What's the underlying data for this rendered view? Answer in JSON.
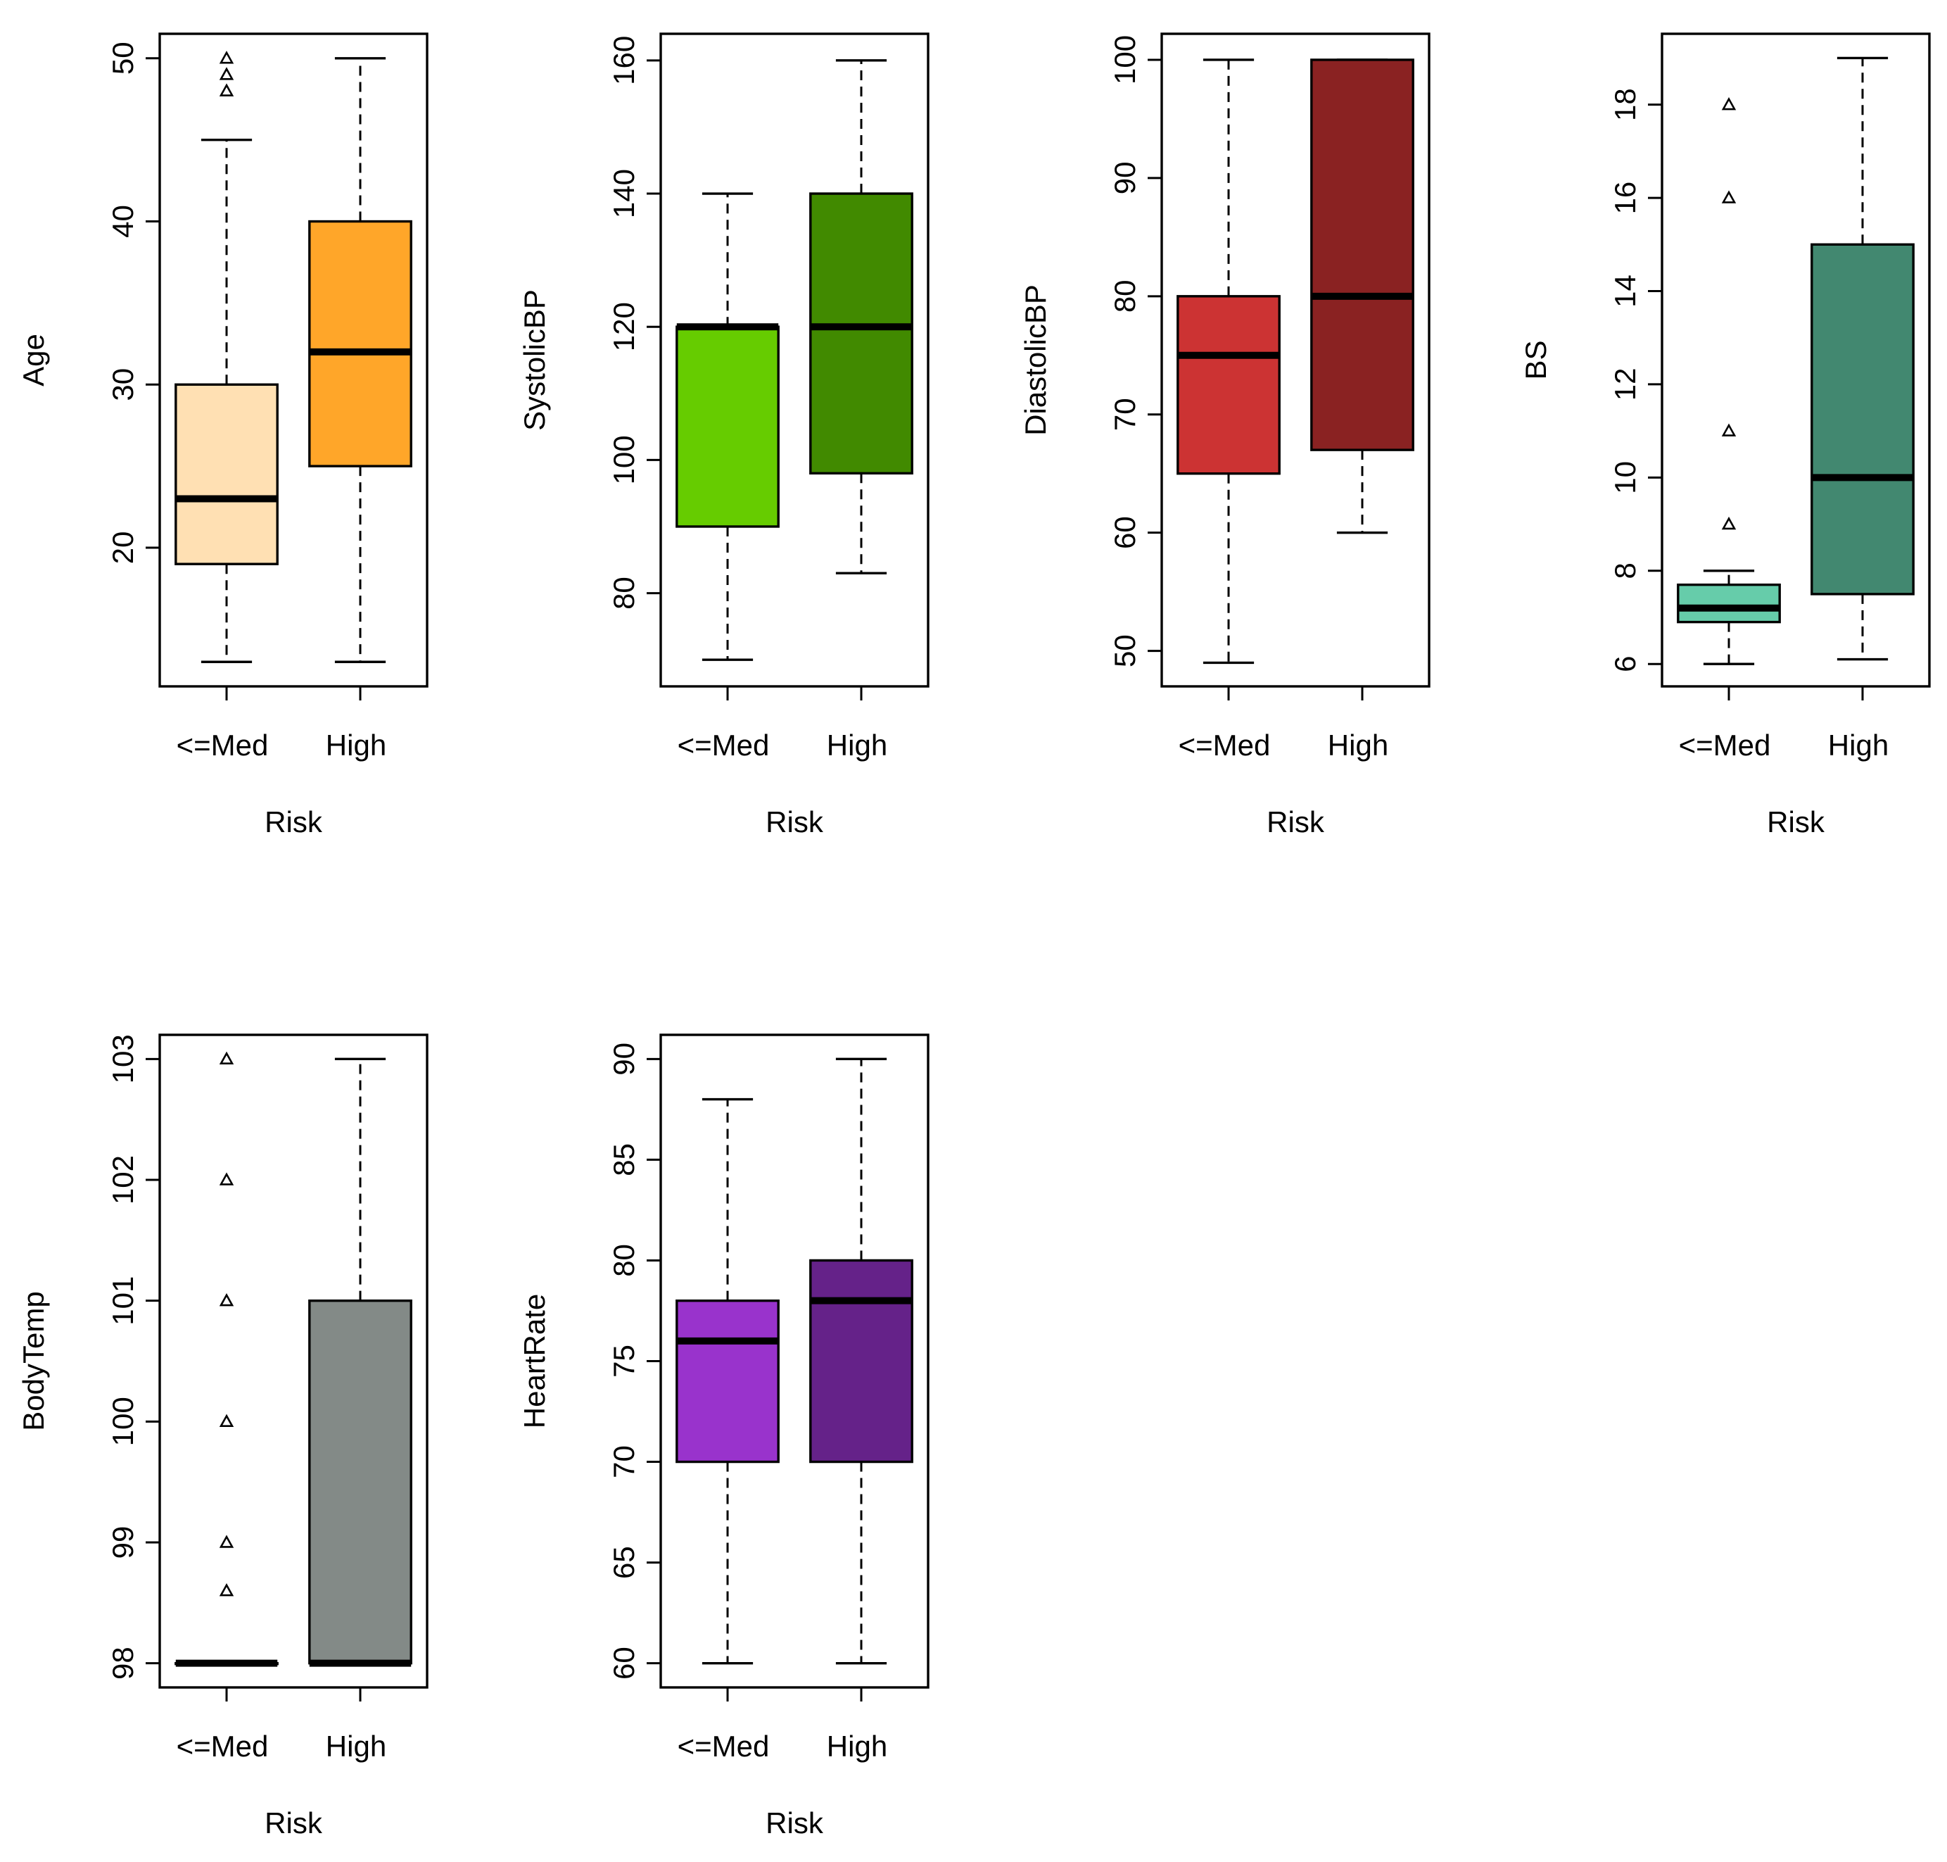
{
  "chart_data": [
    {
      "type": "boxplot",
      "ylabel": "Age",
      "xlabel": "Risk",
      "categories": [
        "<=Med",
        "High"
      ],
      "yticks": [
        20,
        30,
        40,
        50
      ],
      "ylim": [
        11.5,
        51.5
      ],
      "boxes": [
        {
          "category": "<=Med",
          "min": 13,
          "q1": 19,
          "median": 23,
          "q3": 30,
          "max": 45,
          "outliers": [
            48,
            49,
            50
          ],
          "fill": "#FFE0B3"
        },
        {
          "category": "High",
          "min": 13,
          "q1": 25,
          "median": 32,
          "q3": 40,
          "max": 50,
          "outliers": [],
          "fill": "#FFA629"
        }
      ]
    },
    {
      "type": "boxplot",
      "ylabel": "SystolicBP",
      "xlabel": "Risk",
      "categories": [
        "<=Med",
        "High"
      ],
      "yticks": [
        80,
        100,
        120,
        140,
        160
      ],
      "ylim": [
        66,
        164
      ],
      "boxes": [
        {
          "category": "<=Med",
          "min": 70,
          "q1": 90,
          "median": 120,
          "q3": 120,
          "max": 140,
          "outliers": [],
          "fill": "#66CC00"
        },
        {
          "category": "High",
          "min": 83,
          "q1": 98,
          "median": 120,
          "q3": 140,
          "max": 160,
          "outliers": [],
          "fill": "#418A00"
        }
      ]
    },
    {
      "type": "boxplot",
      "ylabel": "DiastolicBP",
      "xlabel": "Risk",
      "categories": [
        "<=Med",
        "High"
      ],
      "yticks": [
        50,
        60,
        70,
        80,
        90,
        100
      ],
      "ylim": [
        47.0,
        102.2
      ],
      "boxes": [
        {
          "category": "<=Med",
          "min": 49,
          "q1": 65,
          "median": 75,
          "q3": 80,
          "max": 100,
          "outliers": [],
          "fill": "#CC3333"
        },
        {
          "category": "High",
          "min": 60,
          "q1": 67,
          "median": 80,
          "q3": 100,
          "max": 100,
          "outliers": [],
          "fill": "#8A2222"
        }
      ]
    },
    {
      "type": "boxplot",
      "ylabel": "BS",
      "xlabel": "Risk",
      "categories": [
        "<=Med",
        "High"
      ],
      "yticks": [
        6,
        8,
        10,
        12,
        14,
        16,
        18
      ],
      "ylim": [
        5.52,
        19.52
      ],
      "boxes": [
        {
          "category": "<=Med",
          "min": 6,
          "q1": 6.9,
          "median": 7.2,
          "q3": 7.7,
          "max": 8,
          "outliers": [
            9,
            11,
            16,
            18
          ],
          "fill": "#66CCAA"
        },
        {
          "category": "High",
          "min": 6.1,
          "q1": 7.5,
          "median": 10,
          "q3": 15,
          "max": 19,
          "outliers": [],
          "fill": "#428870"
        }
      ]
    },
    {
      "type": "boxplot",
      "ylabel": "BodyTemp",
      "xlabel": "Risk",
      "categories": [
        "<=Med",
        "High"
      ],
      "yticks": [
        98,
        99,
        100,
        101,
        102,
        103
      ],
      "ylim": [
        97.8,
        103.2
      ],
      "boxes": [
        {
          "category": "<=Med",
          "min": 98,
          "q1": 98,
          "median": 98,
          "q3": 98,
          "max": 98,
          "outliers": [
            98.6,
            99,
            100,
            101,
            102,
            103
          ],
          "fill": "#8A918E"
        },
        {
          "category": "High",
          "min": 98,
          "q1": 98,
          "median": 98,
          "q3": 101,
          "max": 103,
          "outliers": [],
          "fill": "#838A87"
        }
      ]
    },
    {
      "type": "boxplot",
      "ylabel": "HeartRate",
      "xlabel": "Risk",
      "categories": [
        "<=Med",
        "High"
      ],
      "yticks": [
        60,
        65,
        70,
        75,
        80,
        85,
        90
      ],
      "ylim": [
        58.8,
        91.2
      ],
      "boxes": [
        {
          "category": "<=Med",
          "min": 60,
          "q1": 70,
          "median": 76,
          "q3": 78,
          "max": 88,
          "outliers": [],
          "fill": "#9933CC"
        },
        {
          "category": "High",
          "min": 60,
          "q1": 70,
          "median": 78,
          "q3": 80,
          "max": 90,
          "outliers": [],
          "fill": "#652289"
        }
      ]
    }
  ]
}
